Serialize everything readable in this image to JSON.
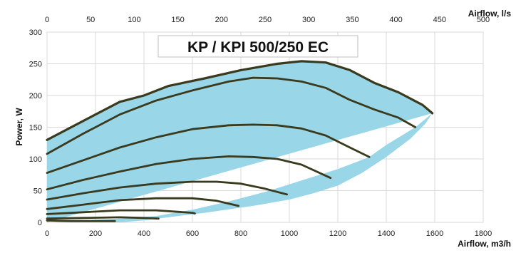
{
  "chart_data": {
    "type": "area",
    "title": "KP / KPI 500/250 EC",
    "xlabel": "Airflow, m3/h",
    "ylabel": "Power, W",
    "x2label": "Airflow, l/s",
    "xlim": [
      0,
      1800
    ],
    "ylim": [
      0,
      300
    ],
    "x2lim": [
      0,
      500
    ],
    "x_ticks": [
      "0",
      "200",
      "400",
      "600",
      "800",
      "1000",
      "1200",
      "1400",
      "1600",
      "1800"
    ],
    "y_ticks": [
      "0",
      "50",
      "100",
      "150",
      "200",
      "250",
      "300"
    ],
    "x2_ticks": [
      "0",
      "50",
      "100",
      "150",
      "200",
      "250",
      "300",
      "350",
      "400",
      "450",
      "500"
    ],
    "grid": true,
    "fill_color": "#99d6e8",
    "curve_color": "#3a3a1e",
    "envelope": {
      "x": [
        0,
        150,
        300,
        400,
        500,
        650,
        850,
        1000,
        1100,
        1200,
        1300,
        1400,
        1500,
        1560,
        1590,
        1520,
        1400,
        1330,
        1200,
        1050,
        900,
        750,
        600,
        450,
        300,
        150,
        50,
        0
      ],
      "y": [
        0,
        0,
        0,
        3,
        8,
        15,
        26,
        36,
        46,
        58,
        78,
        103,
        132,
        155,
        172,
        150,
        122,
        103,
        84,
        66,
        48,
        33,
        20,
        10,
        6,
        3,
        1,
        0
      ]
    },
    "series": [
      {
        "x": [
          0,
          150,
          300,
          400,
          500,
          650,
          800,
          950,
          1050,
          1150,
          1250,
          1350,
          1450,
          1550,
          1590
        ],
        "y": [
          130,
          160,
          190,
          200,
          215,
          227,
          240,
          250,
          254,
          252,
          240,
          220,
          205,
          185,
          172
        ]
      },
      {
        "x": [
          0,
          150,
          300,
          450,
          600,
          750,
          850,
          950,
          1050,
          1150,
          1250,
          1350,
          1450,
          1520
        ],
        "y": [
          108,
          140,
          170,
          192,
          208,
          222,
          228,
          227,
          222,
          212,
          193,
          178,
          165,
          150
        ]
      },
      {
        "x": [
          0,
          150,
          300,
          450,
          600,
          750,
          850,
          950,
          1050,
          1150,
          1250,
          1330
        ],
        "y": [
          78,
          98,
          118,
          134,
          147,
          153,
          154,
          153,
          148,
          137,
          118,
          103
        ]
      },
      {
        "x": [
          0,
          150,
          300,
          450,
          600,
          750,
          850,
          950,
          1050,
          1170
        ],
        "y": [
          52,
          67,
          80,
          92,
          100,
          104,
          103,
          100,
          91,
          70
        ]
      },
      {
        "x": [
          0,
          150,
          300,
          450,
          600,
          700,
          800,
          900,
          990
        ],
        "y": [
          36,
          46,
          55,
          61,
          64,
          64,
          61,
          53,
          44
        ]
      },
      {
        "x": [
          0,
          150,
          300,
          450,
          600,
          700,
          790
        ],
        "y": [
          21,
          28,
          35,
          38,
          38,
          34,
          26
        ]
      },
      {
        "x": [
          0,
          150,
          300,
          450,
          600,
          610
        ],
        "y": [
          13,
          16,
          19,
          19,
          15,
          14
        ]
      },
      {
        "x": [
          0,
          150,
          300,
          400,
          460
        ],
        "y": [
          6,
          7,
          8,
          7,
          6
        ]
      },
      {
        "x": [
          0,
          100,
          200,
          280
        ],
        "y": [
          3,
          2,
          2,
          2
        ]
      }
    ]
  }
}
